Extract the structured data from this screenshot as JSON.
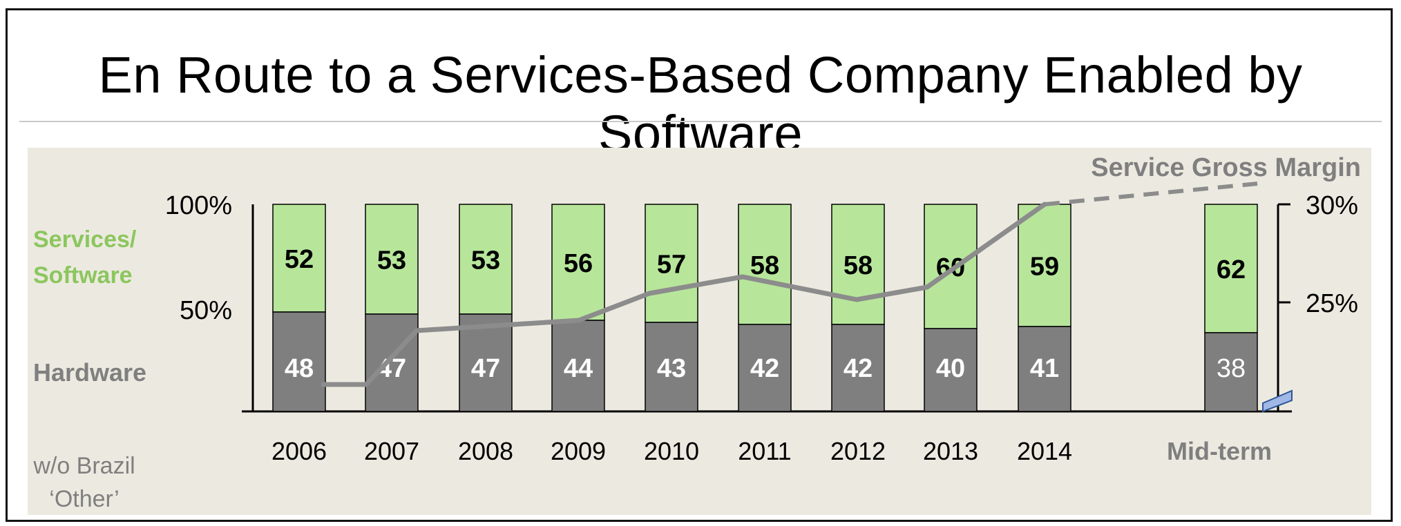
{
  "title": "En Route to a Services-Based Company Enabled by Software",
  "colors": {
    "services": "#b7e69b",
    "hardware": "#7f7f7f",
    "services_label": "#8cc65e",
    "grey_label": "#7f7f7f",
    "line": "#8c8c8c",
    "panel": "#eceae0",
    "projection_bar": "#9fb8e6"
  },
  "chart_data": {
    "type": "bar",
    "stacked": true,
    "categories": [
      "2006",
      "2007",
      "2008",
      "2009",
      "2010",
      "2011",
      "2012",
      "2013",
      "2014",
      "Mid-term"
    ],
    "series": [
      {
        "name": "Hardware",
        "values": [
          48,
          47,
          47,
          44,
          43,
          42,
          42,
          40,
          41,
          38
        ]
      },
      {
        "name": "Services/ Software",
        "values": [
          52,
          53,
          53,
          56,
          57,
          58,
          58,
          60,
          59,
          62
        ]
      }
    ],
    "line_series": {
      "name": "Service Gross Margin",
      "axis": "right",
      "values": [
        21.3,
        21.3,
        23.9,
        24.4,
        25.7,
        26.5,
        25.4,
        26.0,
        30.0,
        31.0
      ],
      "dashed_from_index": 8
    },
    "left_axis": {
      "ticks": [
        "100%",
        "50%"
      ],
      "ylim": [
        0,
        100
      ]
    },
    "right_axis": {
      "ticks": [
        "30%",
        "25%"
      ],
      "ylim": [
        20,
        30
      ]
    },
    "legend_labels": {
      "services": "Services/\nSoftware",
      "hardware": "Hardware"
    },
    "footnote": "w/o Brazil\n‘Other’",
    "grid": false
  }
}
